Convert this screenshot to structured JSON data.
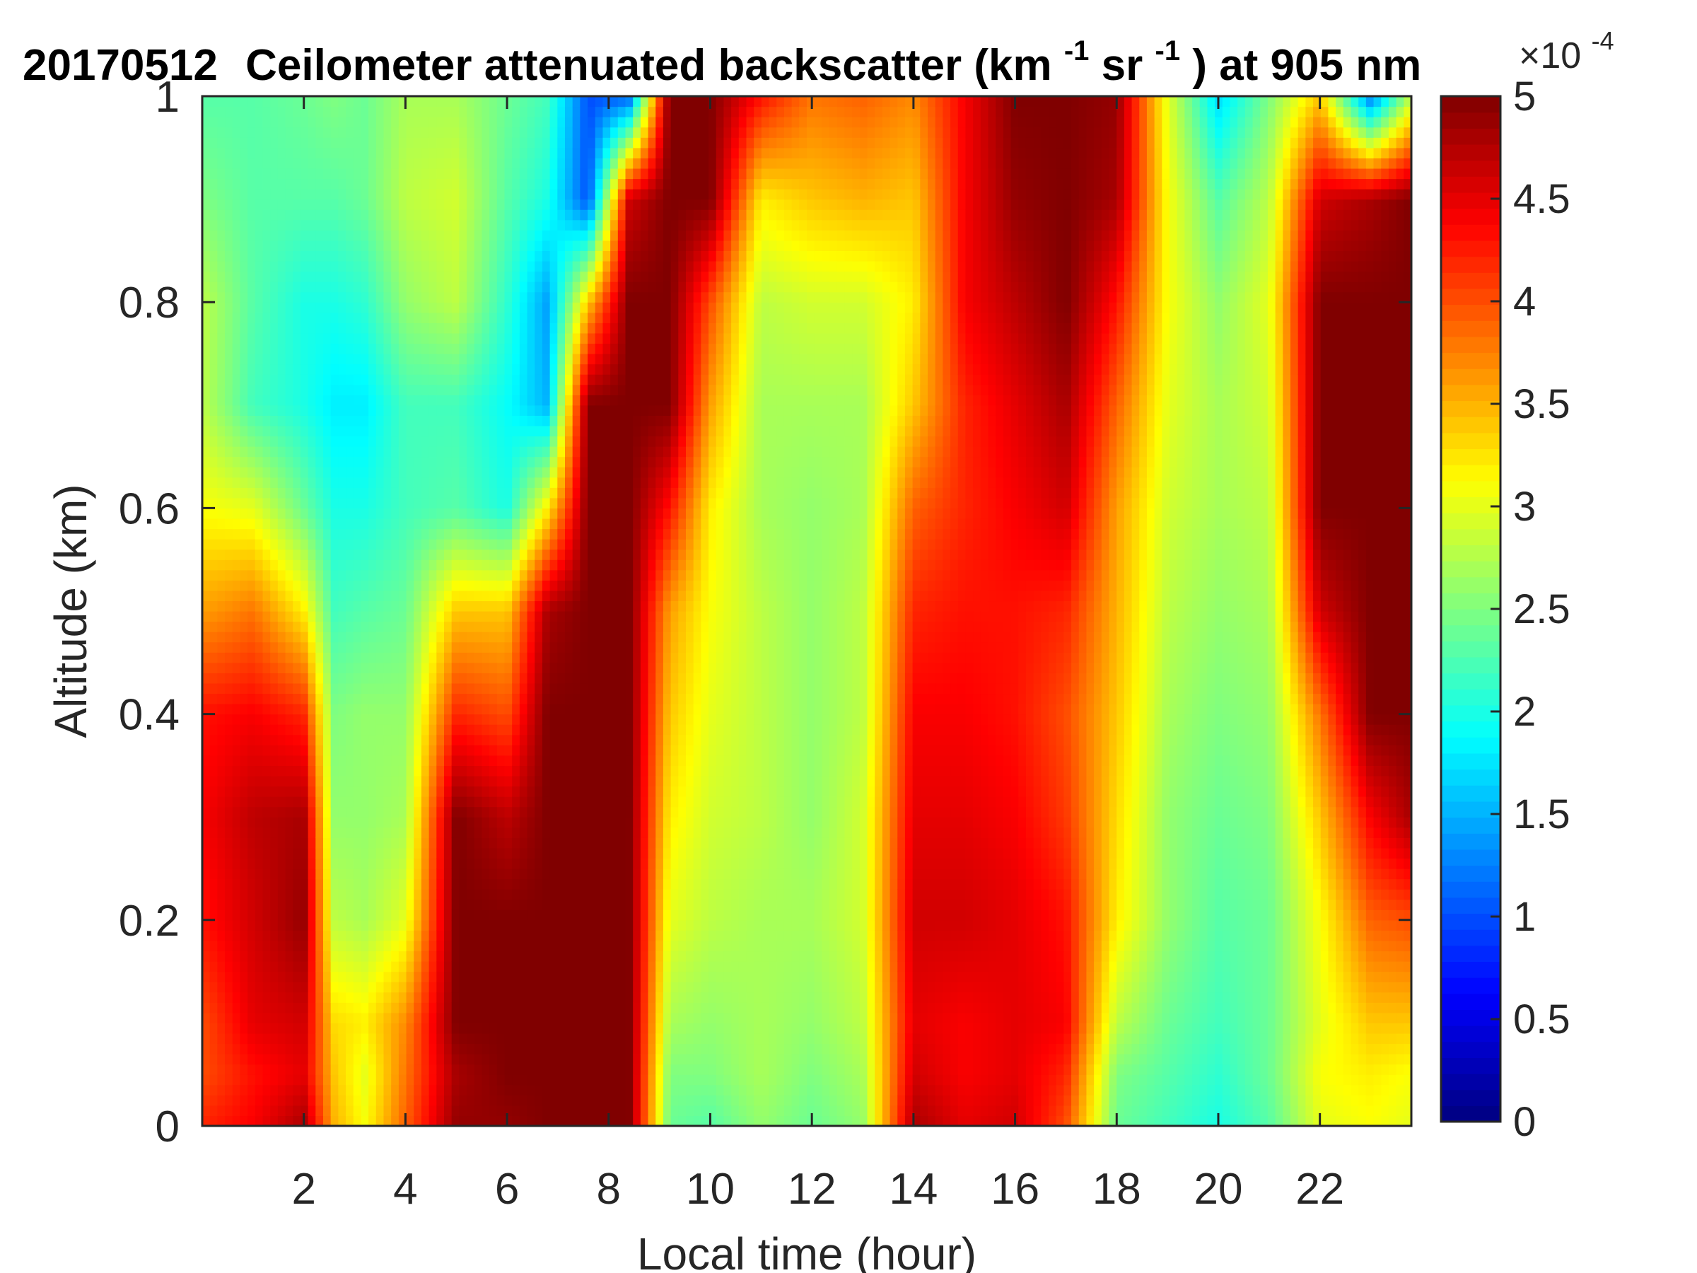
{
  "chart_data": {
    "type": "heatmap",
    "title": {
      "date": "20170512",
      "prefix": "Ceilometer attenuated backscatter (km",
      "sup1": "-1",
      "mid": "sr",
      "sup2": "-1",
      "suffix": ") at 905 nm"
    },
    "xlabel": "Local time (hour)",
    "ylabel": "Altitude (km)",
    "xlim": [
      0,
      23.8
    ],
    "ylim": [
      0,
      1
    ],
    "x_ticks": [
      2,
      4,
      6,
      8,
      10,
      12,
      14,
      16,
      18,
      20,
      22
    ],
    "y_ticks": [
      0,
      0.2,
      0.4,
      0.6,
      0.8,
      1
    ],
    "y_tick_labels": [
      "0",
      "0.2",
      "0.4",
      "0.6",
      "0.8",
      "1"
    ],
    "colorbar": {
      "colormap": "jet",
      "clim": [
        0,
        5
      ],
      "ticks": [
        0,
        0.5,
        1,
        1.5,
        2,
        2.5,
        3,
        3.5,
        4,
        4.5,
        5
      ],
      "tick_labels": [
        "0",
        "0.5",
        "1",
        "1.5",
        "2",
        "2.5",
        "3",
        "3.5",
        "4",
        "4.5",
        "5"
      ],
      "multiplier_base": "×10",
      "multiplier_exp": "-4"
    },
    "grid": false,
    "field_description_units": "backscatter ×10^-4 km^-1 sr^-1, sampled by altitude band (km) and local time (hour)",
    "altitude_bands_km": [
      0.0,
      0.05,
      0.1,
      0.2,
      0.3,
      0.4,
      0.5,
      0.6,
      0.7,
      0.8,
      0.9,
      1.0
    ],
    "columns": [
      {
        "t": 0.0,
        "v": [
          4.2,
          4.0,
          4.0,
          4.3,
          4.4,
          4.3,
          3.6,
          3.1,
          2.8,
          2.8,
          2.5,
          2.3
        ]
      },
      {
        "t": 1.0,
        "v": [
          4.4,
          4.3,
          4.5,
          4.6,
          4.7,
          4.4,
          3.8,
          3.0,
          2.2,
          2.3,
          2.3,
          2.3
        ]
      },
      {
        "t": 2.0,
        "v": [
          4.8,
          4.5,
          4.6,
          4.9,
          4.8,
          4.2,
          3.2,
          2.4,
          2.0,
          2.0,
          2.3,
          2.4
        ]
      },
      {
        "t": 2.6,
        "v": [
          3.5,
          3.4,
          3.3,
          2.8,
          2.6,
          2.5,
          2.2,
          2.0,
          1.8,
          2.0,
          2.3,
          2.5
        ]
      },
      {
        "t": 3.2,
        "v": [
          3.1,
          3.0,
          3.2,
          2.7,
          2.6,
          2.6,
          2.3,
          2.0,
          1.8,
          2.1,
          2.4,
          2.4
        ]
      },
      {
        "t": 4.0,
        "v": [
          3.9,
          3.8,
          3.7,
          3.0,
          2.7,
          2.6,
          2.4,
          2.2,
          2.2,
          2.6,
          2.8,
          2.7
        ]
      },
      {
        "t": 5.0,
        "v": [
          4.9,
          4.8,
          5.0,
          5.0,
          5.0,
          4.2,
          3.4,
          2.3,
          2.2,
          2.8,
          2.9,
          2.7
        ]
      },
      {
        "t": 6.0,
        "v": [
          4.9,
          5.0,
          5.0,
          5.0,
          4.7,
          4.0,
          3.4,
          2.0,
          1.9,
          2.1,
          2.3,
          2.4
        ]
      },
      {
        "t": 6.8,
        "v": [
          5.0,
          5.0,
          5.0,
          5.0,
          5.0,
          5.0,
          4.8,
          3.2,
          1.5,
          1.4,
          2.0,
          2.2
        ]
      },
      {
        "t": 7.6,
        "v": [
          5.0,
          5.0,
          5.0,
          5.0,
          5.0,
          5.0,
          5.0,
          5.0,
          5.0,
          3.4,
          1.0,
          1.0
        ]
      },
      {
        "t": 8.4,
        "v": [
          5.0,
          5.0,
          5.0,
          5.0,
          5.0,
          5.0,
          5.0,
          5.0,
          5.0,
          5.0,
          4.6,
          1.1
        ]
      },
      {
        "t": 9.2,
        "v": [
          2.4,
          2.5,
          2.7,
          3.0,
          3.2,
          3.4,
          3.6,
          4.3,
          5.0,
          5.0,
          5.0,
          5.0
        ]
      },
      {
        "t": 10.0,
        "v": [
          2.3,
          2.5,
          2.6,
          2.8,
          2.9,
          3.0,
          3.1,
          3.2,
          3.6,
          4.0,
          5.0,
          5.0
        ]
      },
      {
        "t": 11.0,
        "v": [
          2.6,
          2.7,
          2.7,
          2.7,
          2.8,
          2.8,
          2.8,
          2.7,
          2.7,
          2.8,
          3.2,
          4.3
        ]
      },
      {
        "t": 12.0,
        "v": [
          2.4,
          2.5,
          2.6,
          2.7,
          2.6,
          2.6,
          2.6,
          2.6,
          2.7,
          2.9,
          3.4,
          3.8
        ]
      },
      {
        "t": 13.0,
        "v": [
          2.6,
          2.7,
          2.8,
          2.9,
          2.9,
          2.8,
          2.8,
          2.7,
          2.7,
          2.9,
          3.5,
          3.9
        ]
      },
      {
        "t": 14.0,
        "v": [
          4.8,
          4.6,
          4.5,
          4.6,
          4.5,
          4.4,
          4.2,
          3.9,
          3.4,
          3.2,
          3.4,
          3.7
        ]
      },
      {
        "t": 15.0,
        "v": [
          4.5,
          4.4,
          4.4,
          4.6,
          4.5,
          4.4,
          4.3,
          4.2,
          4.2,
          4.4,
          4.4,
          4.4
        ]
      },
      {
        "t": 16.0,
        "v": [
          4.6,
          4.5,
          4.5,
          4.5,
          4.4,
          4.3,
          4.3,
          4.4,
          4.5,
          4.7,
          4.9,
          5.0
        ]
      },
      {
        "t": 17.0,
        "v": [
          4.0,
          4.2,
          4.4,
          4.3,
          4.1,
          4.0,
          4.2,
          4.6,
          4.8,
          5.0,
          5.0,
          5.0
        ]
      },
      {
        "t": 18.0,
        "v": [
          2.4,
          2.5,
          2.8,
          3.2,
          3.3,
          3.4,
          3.5,
          3.6,
          3.9,
          4.3,
          4.8,
          4.9
        ]
      },
      {
        "t": 19.0,
        "v": [
          2.2,
          2.3,
          2.4,
          2.6,
          2.6,
          2.7,
          2.8,
          2.9,
          3.0,
          3.1,
          3.1,
          3.0
        ]
      },
      {
        "t": 20.0,
        "v": [
          2.0,
          2.1,
          2.2,
          2.3,
          2.4,
          2.5,
          2.6,
          2.7,
          2.7,
          2.6,
          2.3,
          1.7
        ]
      },
      {
        "t": 21.0,
        "v": [
          2.3,
          2.4,
          2.4,
          2.4,
          2.5,
          2.6,
          2.7,
          2.8,
          2.9,
          3.0,
          2.8,
          2.5
        ]
      },
      {
        "t": 22.0,
        "v": [
          3.0,
          3.1,
          3.0,
          3.1,
          3.4,
          3.8,
          4.6,
          5.0,
          5.0,
          5.0,
          4.6,
          3.4
        ]
      },
      {
        "t": 23.0,
        "v": [
          3.1,
          3.2,
          3.4,
          3.9,
          4.4,
          5.0,
          5.0,
          5.0,
          5.0,
          5.0,
          4.8,
          1.2
        ]
      },
      {
        "t": 23.8,
        "v": [
          3.0,
          3.1,
          3.4,
          4.0,
          4.8,
          5.0,
          5.0,
          5.0,
          5.0,
          5.0,
          5.0,
          2.8
        ]
      }
    ]
  }
}
